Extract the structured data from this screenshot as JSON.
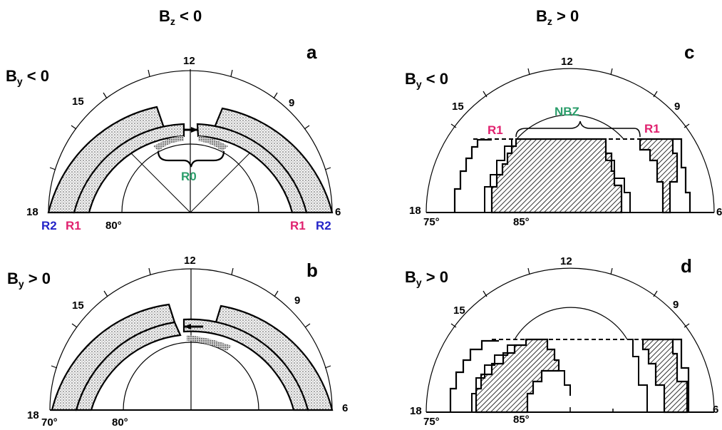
{
  "headers": {
    "left": {
      "base": "B",
      "sub": "z",
      "rel": " < 0"
    },
    "right": {
      "base": "B",
      "sub": "z",
      "rel": " > 0"
    }
  },
  "panels": {
    "a": {
      "letter": "a",
      "imf": {
        "base": "B",
        "sub": "y",
        "rel": " < 0"
      },
      "clock": {
        "c12": "12",
        "c15": "15",
        "c9": "9",
        "c18": "18",
        "c6": "6"
      },
      "lat": {
        "inner": "80°"
      },
      "currents": {
        "r2_left": "R2",
        "r1_left": "R1",
        "r1_right": "R1",
        "r2_right": "R2",
        "r0": "R0"
      }
    },
    "b": {
      "letter": "b",
      "imf": {
        "base": "B",
        "sub": "y",
        "rel": " > 0"
      },
      "clock": {
        "c12": "12",
        "c15": "15",
        "c9": "9",
        "c18": "18",
        "c6": "6"
      },
      "lat": {
        "outer": "70°",
        "inner": "80°"
      }
    },
    "c": {
      "letter": "c",
      "imf": {
        "base": "B",
        "sub": "y",
        "rel": " < 0"
      },
      "clock": {
        "c12": "12",
        "c15": "15",
        "c9": "9",
        "c18": "18",
        "c6": "6"
      },
      "lat": {
        "outer": "75°",
        "inner": "85°"
      },
      "currents": {
        "r1_left": "R1",
        "r1_right": "R1",
        "nbz": "NBZ"
      }
    },
    "d": {
      "letter": "d",
      "imf": {
        "base": "B",
        "sub": "y",
        "rel": " > 0"
      },
      "clock": {
        "c12": "12",
        "c15": "15",
        "c9": "9",
        "c18": "18",
        "c6": "6"
      },
      "lat": {
        "outer": "75°",
        "inner": "85°"
      }
    }
  },
  "colors": {
    "r2": "#2323c8",
    "r1": "#e0206e",
    "r0_nbz": "#2a9d6a"
  }
}
